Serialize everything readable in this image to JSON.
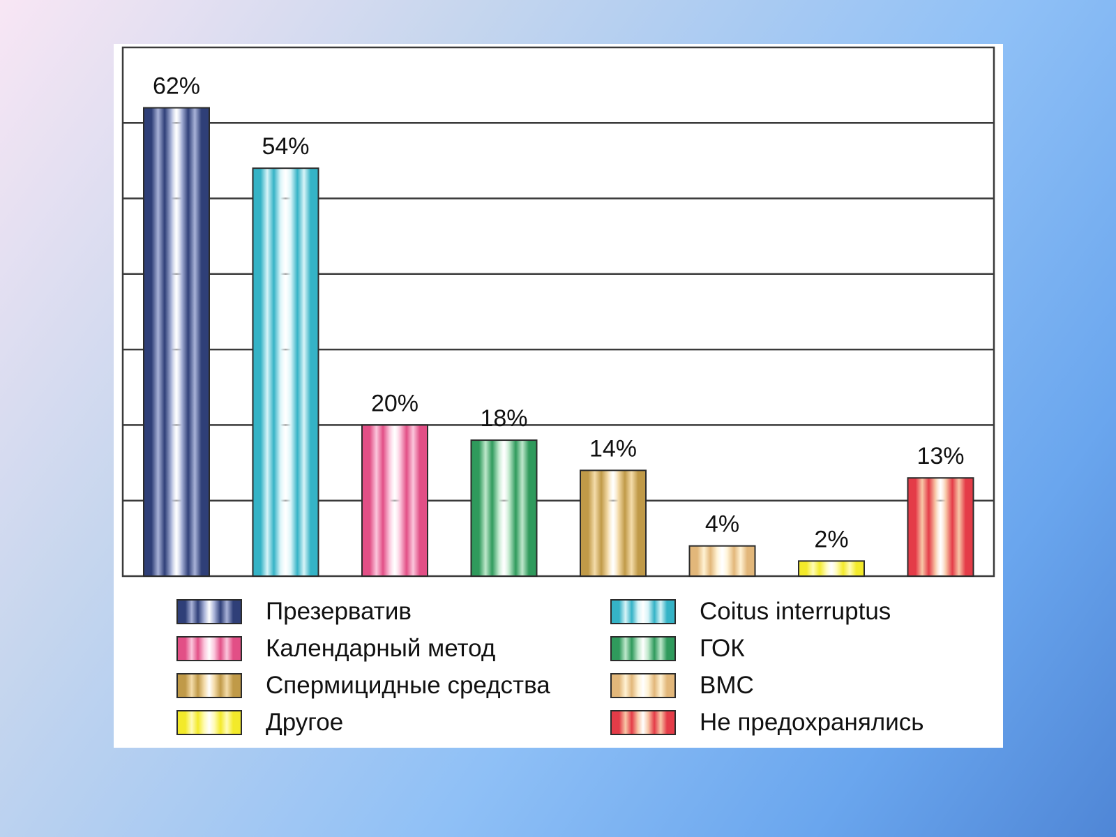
{
  "chart_data": {
    "type": "bar",
    "title": "",
    "xlabel": "",
    "ylabel": "",
    "ylim": [
      0,
      70
    ],
    "grid": true,
    "legend_position": "bottom",
    "categories": [
      "Презерватив",
      "Coitus interruptus",
      "Календарный метод",
      "ГОК",
      "Спермицидные средства",
      "ВМС",
      "Другое",
      "Не предохранялись"
    ],
    "values": [
      62,
      54,
      20,
      18,
      14,
      4,
      2,
      13
    ],
    "value_labels": [
      "62%",
      "54%",
      "20%",
      "18%",
      "14%",
      "4%",
      "2%",
      "13%"
    ],
    "colors": [
      "#2f3f78",
      "#35b3c6",
      "#e24f86",
      "#2f9a5c",
      "#c09a48",
      "#e2b77a",
      "#f3ea2a",
      "#e43c48"
    ],
    "highlight_colors": [
      "#a9b3d8",
      "#d8f4f8",
      "#fbc6dc",
      "#bfe8cc",
      "#f4dcaa",
      "#fff2d4",
      "#fffbb8",
      "#f8c8a8"
    ]
  },
  "legend_layout": [
    [
      "Презерватив",
      "Coitus interruptus"
    ],
    [
      "Календарный метод",
      "ГОК"
    ],
    [
      "Спермицидные средства",
      "ВМС"
    ],
    [
      "Другое",
      "Не предохранялись"
    ]
  ]
}
